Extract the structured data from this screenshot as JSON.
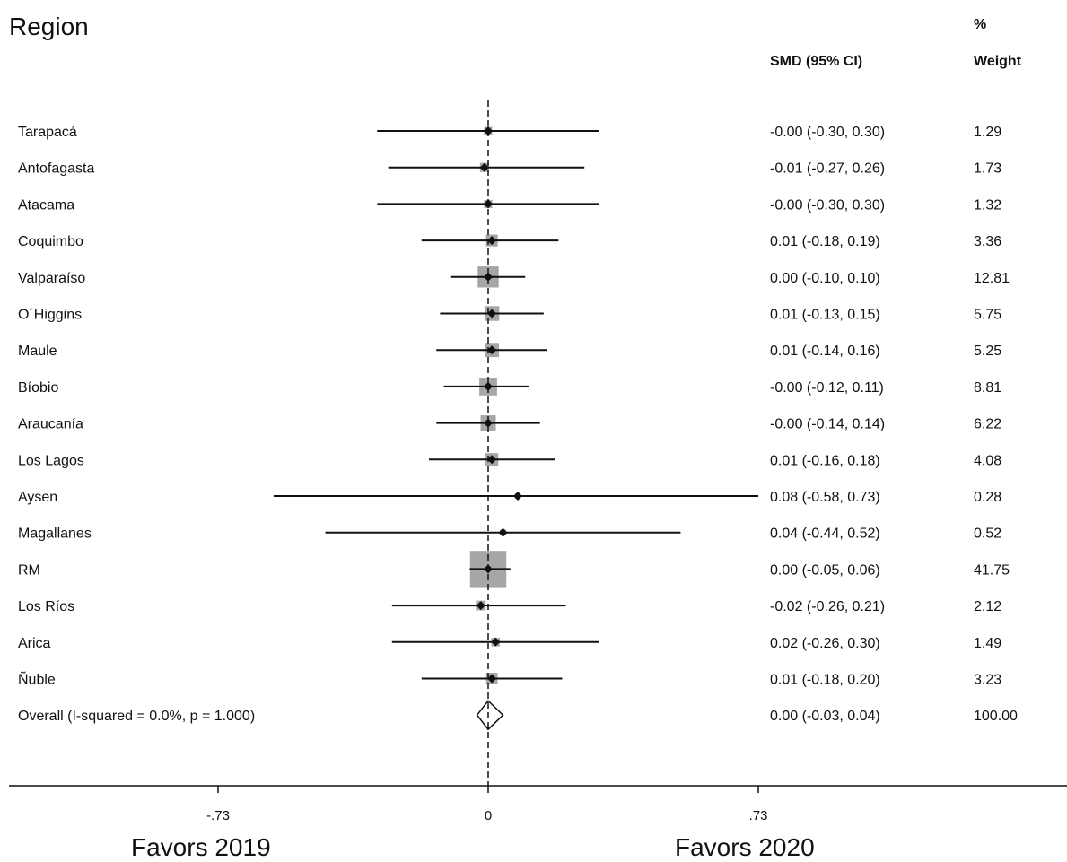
{
  "header": {
    "region": "Region",
    "pct": "%",
    "smd": "SMD (95% CI)",
    "weight": "Weight"
  },
  "footer": {
    "favors_left": "Favors 2019",
    "favors_right": "Favors 2020"
  },
  "chart_data": {
    "type": "forest",
    "xlim": [
      -1.3,
      1.6
    ],
    "x_ticks": [
      -0.73,
      0,
      0.73
    ],
    "x_tick_labels": [
      "-.73",
      "0",
      ".73"
    ],
    "colors": {
      "box": "#a6a6a6",
      "line": "#111111",
      "diamond": "#ffffff"
    },
    "studies": [
      {
        "label": "Tarapacá",
        "smd": -0.0,
        "lo": -0.3,
        "hi": 0.3,
        "ci": "-0.00 (-0.30, 0.30)",
        "weight": 1.29,
        "weight_text": "1.29"
      },
      {
        "label": "Antofagasta",
        "smd": -0.01,
        "lo": -0.27,
        "hi": 0.26,
        "ci": "-0.01 (-0.27, 0.26)",
        "weight": 1.73,
        "weight_text": "1.73"
      },
      {
        "label": "Atacama",
        "smd": -0.0,
        "lo": -0.3,
        "hi": 0.3,
        "ci": "-0.00 (-0.30, 0.30)",
        "weight": 1.32,
        "weight_text": "1.32"
      },
      {
        "label": "Coquimbo",
        "smd": 0.01,
        "lo": -0.18,
        "hi": 0.19,
        "ci": "0.01 (-0.18, 0.19)",
        "weight": 3.36,
        "weight_text": "3.36"
      },
      {
        "label": "Valparaíso",
        "smd": 0.0,
        "lo": -0.1,
        "hi": 0.1,
        "ci": "0.00 (-0.10, 0.10)",
        "weight": 12.81,
        "weight_text": "12.81"
      },
      {
        "label": "O´Higgins",
        "smd": 0.01,
        "lo": -0.13,
        "hi": 0.15,
        "ci": "0.01 (-0.13, 0.15)",
        "weight": 5.75,
        "weight_text": "5.75"
      },
      {
        "label": "Maule",
        "smd": 0.01,
        "lo": -0.14,
        "hi": 0.16,
        "ci": "0.01 (-0.14, 0.16)",
        "weight": 5.25,
        "weight_text": "5.25"
      },
      {
        "label": "Bíobio",
        "smd": -0.0,
        "lo": -0.12,
        "hi": 0.11,
        "ci": "-0.00 (-0.12, 0.11)",
        "weight": 8.81,
        "weight_text": "8.81"
      },
      {
        "label": "Araucanía",
        "smd": -0.0,
        "lo": -0.14,
        "hi": 0.14,
        "ci": "-0.00 (-0.14, 0.14)",
        "weight": 6.22,
        "weight_text": "6.22"
      },
      {
        "label": "Los Lagos",
        "smd": 0.01,
        "lo": -0.16,
        "hi": 0.18,
        "ci": "0.01 (-0.16, 0.18)",
        "weight": 4.08,
        "weight_text": "4.08"
      },
      {
        "label": "Aysen",
        "smd": 0.08,
        "lo": -0.58,
        "hi": 0.73,
        "ci": "0.08 (-0.58, 0.73)",
        "weight": 0.28,
        "weight_text": "0.28"
      },
      {
        "label": "Magallanes",
        "smd": 0.04,
        "lo": -0.44,
        "hi": 0.52,
        "ci": "0.04 (-0.44, 0.52)",
        "weight": 0.52,
        "weight_text": "0.52"
      },
      {
        "label": "RM",
        "smd": 0.0,
        "lo": -0.05,
        "hi": 0.06,
        "ci": "0.00 (-0.05, 0.06)",
        "weight": 41.75,
        "weight_text": "41.75"
      },
      {
        "label": "Los Ríos",
        "smd": -0.02,
        "lo": -0.26,
        "hi": 0.21,
        "ci": "-0.02 (-0.26, 0.21)",
        "weight": 2.12,
        "weight_text": "2.12"
      },
      {
        "label": "Arica",
        "smd": 0.02,
        "lo": -0.26,
        "hi": 0.3,
        "ci": "0.02 (-0.26, 0.30)",
        "weight": 1.49,
        "weight_text": "1.49"
      },
      {
        "label": "Ñuble",
        "smd": 0.01,
        "lo": -0.18,
        "hi": 0.2,
        "ci": "0.01 (-0.18, 0.20)",
        "weight": 3.23,
        "weight_text": "3.23"
      }
    ],
    "overall": {
      "label": "Overall  (I-squared = 0.0%, p = 1.000)",
      "smd": 0.0,
      "lo": -0.03,
      "hi": 0.04,
      "ci": "0.00 (-0.03, 0.04)",
      "weight": 100.0,
      "weight_text": "100.00"
    }
  }
}
